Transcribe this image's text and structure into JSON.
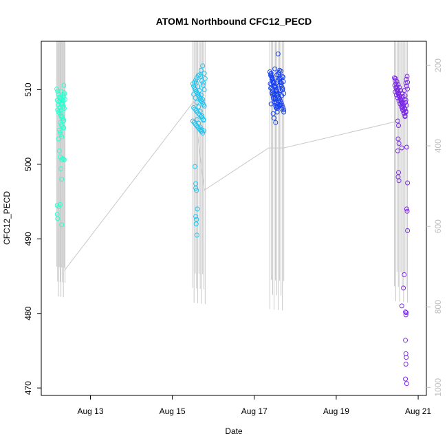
{
  "chart_data": {
    "type": "scatter",
    "title": "ATOM1 Northbound CFC12_PECD",
    "xlabel": "Date",
    "ylabel": "CFC12_PECD",
    "x_ticks": [
      "Aug 13",
      "Aug 15",
      "Aug 17",
      "Aug 19",
      "Aug 21"
    ],
    "x_tick_values_day": [
      13,
      15,
      17,
      19,
      21
    ],
    "xlim_day": [
      11.8,
      21.2
    ],
    "y_ticks": [
      470,
      480,
      490,
      500,
      510
    ],
    "ylim": [
      469,
      516.5
    ],
    "y2_ticks": [
      200,
      400,
      600,
      800,
      1000
    ],
    "y2lim": [
      1020,
      140
    ],
    "grid": false,
    "legend": "none",
    "point_style": "open-circle",
    "altitude_trace_color": "#c8c8c8",
    "series": [
      {
        "color": "#2bffd0",
        "x_day": [
          12.18,
          12.2,
          12.22,
          12.24,
          12.26,
          12.28,
          12.3,
          12.32,
          12.34,
          12.36,
          12.2,
          12.22,
          12.25,
          12.28,
          12.3,
          12.32,
          12.35,
          12.27,
          12.29,
          12.31,
          12.33,
          12.24,
          12.26,
          12.28,
          12.3,
          12.22,
          12.24,
          12.26,
          12.3,
          12.32,
          12.34,
          12.36,
          12.19,
          12.21,
          12.23,
          12.25,
          12.27,
          12.29,
          12.31,
          12.33,
          12.27,
          12.3,
          12.33,
          12.35,
          12.3,
          12.32,
          12.35,
          12.28,
          12.3,
          12.34,
          12.36,
          12.19,
          12.23,
          12.26,
          12.3,
          12.34,
          12.36,
          12.38,
          12.19,
          12.2,
          12.27,
          12.33
        ],
        "y": [
          510.1,
          509.8,
          509.4,
          509.0,
          508.8,
          508.5,
          508.2,
          508.0,
          507.8,
          507.5,
          507.3,
          507.0,
          506.8,
          506.5,
          506.3,
          506.1,
          505.9,
          505.6,
          505.3,
          505.1,
          504.9,
          504.6,
          504.3,
          504.0,
          503.7,
          503.4,
          501.8,
          501.0,
          500.6,
          500.8,
          509.2,
          509.6,
          508.6,
          508.0,
          508.4,
          507.6,
          507.2,
          506.9,
          506.4,
          505.8,
          509.0,
          508.8,
          508.6,
          510.6,
          508.0,
          507.6,
          504.9,
          499.4,
          498.0,
          500.7,
          500.6,
          494.5,
          494.3,
          494.6,
          491.9,
          509.0,
          509.4,
          508.7,
          493.3,
          492.7,
          509.8,
          508.5
        ]
      },
      {
        "color": "#1ec4f2",
        "x_day": [
          15.5,
          15.52,
          15.54,
          15.56,
          15.58,
          15.6,
          15.62,
          15.64,
          15.66,
          15.68,
          15.7,
          15.72,
          15.74,
          15.76,
          15.78,
          15.52,
          15.55,
          15.58,
          15.61,
          15.64,
          15.67,
          15.7,
          15.73,
          15.76,
          15.5,
          15.53,
          15.56,
          15.59,
          15.62,
          15.65,
          15.68,
          15.71,
          15.74,
          15.77,
          15.54,
          15.57,
          15.6,
          15.63,
          15.66,
          15.69,
          15.72,
          15.75,
          15.78,
          15.52,
          15.56,
          15.6,
          15.64,
          15.68,
          15.72,
          15.76,
          15.58,
          15.62,
          15.66,
          15.7,
          15.74,
          15.6,
          15.64,
          15.68,
          15.72,
          15.55,
          15.57,
          15.59,
          15.61,
          15.57,
          15.59,
          15.58,
          15.6,
          15.57,
          15.7,
          15.74,
          15.78,
          15.8,
          15.76,
          15.66
        ],
        "y": [
          510.8,
          510.5,
          510.2,
          510.0,
          509.8,
          509.6,
          509.4,
          509.2,
          509.0,
          508.8,
          508.6,
          508.4,
          508.2,
          508.0,
          507.8,
          507.6,
          507.4,
          507.2,
          507.0,
          506.8,
          506.6,
          506.4,
          506.2,
          506.0,
          505.8,
          505.6,
          505.4,
          505.2,
          505.0,
          504.8,
          504.6,
          504.4,
          504.2,
          504.5,
          511.0,
          511.3,
          511.6,
          511.9,
          512.0,
          511.8,
          511.2,
          510.6,
          510.0,
          509.4,
          508.9,
          508.3,
          507.7,
          507.1,
          506.5,
          505.9,
          510.9,
          510.4,
          509.9,
          509.3,
          508.7,
          506.0,
          505.5,
          505.0,
          504.6,
          499.7,
          497.4,
          496.5,
          494.0,
          493.0,
          492.6,
          492.0,
          490.5,
          496.8,
          512.6,
          513.2,
          512.2,
          511.5,
          510.9,
          509.0
        ]
      },
      {
        "color": "#1740f0",
        "x_day": [
          17.38,
          17.4,
          17.42,
          17.44,
          17.46,
          17.48,
          17.5,
          17.52,
          17.54,
          17.56,
          17.58,
          17.6,
          17.62,
          17.64,
          17.66,
          17.68,
          17.7,
          17.72,
          17.4,
          17.43,
          17.46,
          17.49,
          17.52,
          17.55,
          17.58,
          17.61,
          17.64,
          17.67,
          17.7,
          17.39,
          17.42,
          17.45,
          17.48,
          17.51,
          17.54,
          17.57,
          17.6,
          17.63,
          17.66,
          17.69,
          17.72,
          17.41,
          17.44,
          17.47,
          17.5,
          17.53,
          17.56,
          17.59,
          17.62,
          17.65,
          17.68,
          17.71,
          17.4,
          17.43,
          17.46,
          17.49,
          17.52,
          17.55,
          17.58,
          17.61,
          17.64,
          17.67,
          17.42,
          17.45,
          17.48,
          17.51,
          17.54,
          17.57,
          17.6,
          17.63,
          17.66,
          17.69,
          17.44,
          17.47,
          17.5,
          17.53,
          17.56,
          17.59,
          17.62,
          17.65,
          17.68,
          17.58,
          17.5,
          17.52,
          17.48,
          17.72,
          17.46,
          17.62,
          17.41,
          17.55
        ],
        "y": [
          512.4,
          512.1,
          511.8,
          511.5,
          511.2,
          510.9,
          510.6,
          510.3,
          510.0,
          509.7,
          509.4,
          509.1,
          508.8,
          508.5,
          508.2,
          507.9,
          507.6,
          507.3,
          511.9,
          511.4,
          510.9,
          510.4,
          509.9,
          509.4,
          508.9,
          508.4,
          507.9,
          507.4,
          511.7,
          510.8,
          510.3,
          509.8,
          509.3,
          508.8,
          508.3,
          507.8,
          511.5,
          511.0,
          510.5,
          510.0,
          509.5,
          512.2,
          511.6,
          511.0,
          510.4,
          509.8,
          509.2,
          508.6,
          508.0,
          512.5,
          511.8,
          511.1,
          510.2,
          509.6,
          509.0,
          508.4,
          507.8,
          512.0,
          511.3,
          510.6,
          509.9,
          509.2,
          510.7,
          510.1,
          509.5,
          508.9,
          508.3,
          507.7,
          512.3,
          511.6,
          510.9,
          510.2,
          509.4,
          508.8,
          508.2,
          507.6,
          507.0,
          512.1,
          511.4,
          510.7,
          510.0,
          514.8,
          512.8,
          505.6,
          506.2,
          507.0,
          506.8,
          512.6,
          508.1,
          507.5
        ]
      },
      {
        "color": "#7b28e6",
        "x_day": [
          20.42,
          20.44,
          20.46,
          20.48,
          20.5,
          20.52,
          20.54,
          20.56,
          20.58,
          20.6,
          20.62,
          20.64,
          20.66,
          20.68,
          20.7,
          20.72,
          20.74,
          20.44,
          20.47,
          20.5,
          20.53,
          20.56,
          20.59,
          20.62,
          20.65,
          20.68,
          20.71,
          20.74,
          20.43,
          20.46,
          20.49,
          20.52,
          20.55,
          20.58,
          20.61,
          20.64,
          20.67,
          20.7,
          20.73,
          20.45,
          20.48,
          20.51,
          20.54,
          20.57,
          20.6,
          20.63,
          20.66,
          20.69,
          20.72,
          20.46,
          20.49,
          20.52,
          20.55,
          20.58,
          20.61,
          20.64,
          20.67,
          20.7,
          20.5,
          20.52,
          20.51,
          20.53,
          20.5,
          20.52,
          20.51,
          20.53,
          20.6,
          20.72,
          20.74,
          20.72,
          20.73,
          20.74,
          20.66,
          20.6,
          20.64,
          20.69,
          20.7,
          20.71,
          20.69,
          20.7,
          20.71,
          20.7,
          20.69,
          20.72,
          20.7,
          20.68,
          20.66
        ],
        "y": [
          511.6,
          511.2,
          510.8,
          510.4,
          510.0,
          509.6,
          509.2,
          508.8,
          508.4,
          508.0,
          507.6,
          507.2,
          506.8,
          506.4,
          510.9,
          510.5,
          510.1,
          509.7,
          509.3,
          508.9,
          508.5,
          508.1,
          507.7,
          507.3,
          506.9,
          506.5,
          511.4,
          511.0,
          510.6,
          510.2,
          509.8,
          509.4,
          509.0,
          508.6,
          508.2,
          507.8,
          507.4,
          507.0,
          511.8,
          511.5,
          511.1,
          510.7,
          510.3,
          509.9,
          509.5,
          509.1,
          508.7,
          508.3,
          507.9,
          510.3,
          509.9,
          509.5,
          509.1,
          508.7,
          508.3,
          507.9,
          507.5,
          507.1,
          505.8,
          505.2,
          503.4,
          502.8,
          501.8,
          498.9,
          498.3,
          497.8,
          502.2,
          502.3,
          497.5,
          494.0,
          493.7,
          491.1,
          485.2,
          481.0,
          483.4,
          480.2,
          479.8,
          480.1,
          476.4,
          474.6,
          474.1,
          473.2,
          471.2,
          470.6,
          508.6,
          509.2,
          509.9
        ]
      }
    ],
    "altitude_trace": [
      {
        "x_day": 12.36,
        "y2": 710
      },
      {
        "x_day": 15.52,
        "y2": 290
      },
      {
        "x_day": 15.78,
        "y2": 510
      },
      {
        "x_day": 17.35,
        "y2": 405
      },
      {
        "x_day": 17.72,
        "y2": 405
      },
      {
        "x_day": 20.44,
        "y2": 340
      }
    ]
  }
}
